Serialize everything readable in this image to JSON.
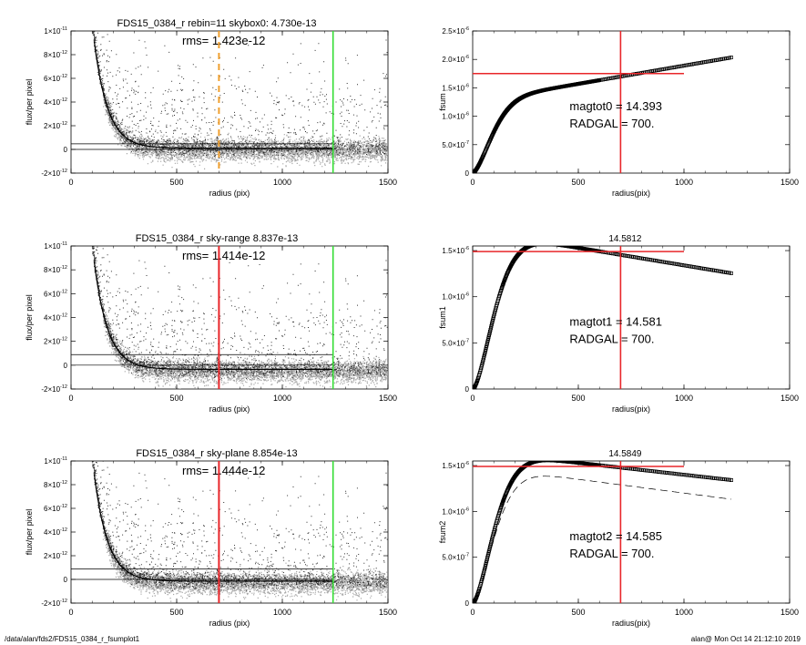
{
  "page": {
    "footer_left": "/data/alan/fds2/FDS15_0384_r_fsumplot1",
    "footer_right": "alan@  Mon Oct 14 21:12:10 2019"
  },
  "colors": {
    "red": "#e8262a",
    "green": "#33dd33",
    "orange": "#f0a030",
    "points_dark": "#303030",
    "points_light": "#a8a8a8"
  },
  "chart_data": [
    {
      "type": "scatter",
      "title": "FDS15_0384_r rebin=11    skybox0:  4.730e-13",
      "annotation": "rms= 1.423e-12",
      "xlabel": "radius (pix)",
      "ylabel": "flux/per pixel",
      "xlim": [
        0,
        1500
      ],
      "ylim": [
        -2e-12,
        1e-11
      ],
      "xticks": [
        "0",
        "500",
        "1000",
        "1500"
      ],
      "yticks": [
        {
          "v": 1e-11,
          "base": "1×10",
          "exp": "-11"
        },
        {
          "v": 8e-12,
          "base": "8×10",
          "exp": "-12"
        },
        {
          "v": 6e-12,
          "base": "6×10",
          "exp": "-12"
        },
        {
          "v": 4e-12,
          "base": "4×10",
          "exp": "-12"
        },
        {
          "v": 2e-12,
          "base": "2×10",
          "exp": "-12"
        },
        {
          "v": 0,
          "base": "0",
          "exp": ""
        },
        {
          "v": -2e-12,
          "base": "-2×10",
          "exp": "-12"
        }
      ],
      "hlines": [
        0,
        4.73e-13
      ],
      "profile_decay": 65,
      "noise": 1.3e-12,
      "tail": 1e-13,
      "marker_line": {
        "x": 700,
        "style": "dashed",
        "color": "orange"
      },
      "limit_line": {
        "x": 1240,
        "color": "green"
      }
    },
    {
      "type": "scatter",
      "title": "FDS15_0384_r sky-range  8.837e-13",
      "annotation": "rms= 1.414e-12",
      "xlabel": "radius (pix)",
      "ylabel": "flux/per pixel",
      "xlim": [
        0,
        1500
      ],
      "ylim": [
        -2e-12,
        1e-11
      ],
      "xticks": [
        "0",
        "500",
        "1000",
        "1500"
      ],
      "yticks": [
        {
          "v": 1e-11,
          "base": "1×10",
          "exp": "-11"
        },
        {
          "v": 8e-12,
          "base": "8×10",
          "exp": "-12"
        },
        {
          "v": 6e-12,
          "base": "6×10",
          "exp": "-12"
        },
        {
          "v": 4e-12,
          "base": "4×10",
          "exp": "-12"
        },
        {
          "v": 2e-12,
          "base": "2×10",
          "exp": "-12"
        },
        {
          "v": 0,
          "base": "0",
          "exp": ""
        },
        {
          "v": -2e-12,
          "base": "-2×10",
          "exp": "-12"
        }
      ],
      "hlines": [
        0,
        8.837e-13
      ],
      "profile_decay": 65,
      "noise": 1.3e-12,
      "tail": -3.5e-13,
      "marker_line": {
        "x": 700,
        "style": "solid",
        "color": "red"
      },
      "limit_line": {
        "x": 1240,
        "color": "green"
      }
    },
    {
      "type": "scatter",
      "title": "FDS15_0384_r sky-plane  8.854e-13",
      "annotation": "rms= 1.444e-12",
      "xlabel": "radius (pix)",
      "ylabel": "flux/per pixel",
      "xlim": [
        0,
        1500
      ],
      "ylim": [
        -2e-12,
        1e-11
      ],
      "xticks": [
        "0",
        "500",
        "1000",
        "1500"
      ],
      "yticks": [
        {
          "v": 1e-11,
          "base": "1×10",
          "exp": "-11"
        },
        {
          "v": 8e-12,
          "base": "8×10",
          "exp": "-12"
        },
        {
          "v": 6e-12,
          "base": "6×10",
          "exp": "-12"
        },
        {
          "v": 4e-12,
          "base": "4×10",
          "exp": "-12"
        },
        {
          "v": 2e-12,
          "base": "2×10",
          "exp": "-12"
        },
        {
          "v": 0,
          "base": "0",
          "exp": ""
        },
        {
          "v": -2e-12,
          "base": "-2×10",
          "exp": "-12"
        }
      ],
      "hlines": [
        0,
        8.854e-13
      ],
      "profile_decay": 65,
      "noise": 1.3e-12,
      "tail": -1.5e-13,
      "marker_line": {
        "x": 700,
        "style": "solid",
        "color": "red"
      },
      "limit_line": {
        "x": 1240,
        "color": "green"
      }
    },
    {
      "type": "line",
      "title": "",
      "xlabel": "radius(pix)",
      "ylabel": "fsum",
      "xlim": [
        0,
        1500
      ],
      "ylim": [
        0,
        2.5e-06
      ],
      "xticks": [
        "0",
        "500",
        "1000",
        "1500"
      ],
      "yticks": [
        {
          "v": 0,
          "base": "0",
          "exp": ""
        },
        {
          "v": 5e-07,
          "base": "5.0×10",
          "exp": "-7"
        },
        {
          "v": 1e-06,
          "base": "1.0×10",
          "exp": "-6"
        },
        {
          "v": 1.5e-06,
          "base": "1.5×10",
          "exp": "-6"
        },
        {
          "v": 2e-06,
          "base": "2.0×10",
          "exp": "-6"
        },
        {
          "v": 2.5e-06,
          "base": "2.5×10",
          "exp": "-6"
        }
      ],
      "curve": {
        "plateau": 1.25e-06,
        "decay": 120,
        "slope": 6.4e-10,
        "max_x": 1230
      },
      "dashed_curve": null,
      "hline": {
        "y": 1.75e-06,
        "x_end": 1000
      },
      "vline": {
        "x": 700
      },
      "magtot_label": "magtot0 =  14.393",
      "radgal_label": "RADGAL =    700.",
      "top_value": ""
    },
    {
      "type": "line",
      "title": "",
      "xlabel": "radius(pix)",
      "ylabel": "fsum1",
      "xlim": [
        0,
        1500
      ],
      "ylim": [
        0,
        1.55e-06
      ],
      "xticks": [
        "0",
        "500",
        "1000",
        "1500"
      ],
      "yticks": [
        {
          "v": 0,
          "base": "0",
          "exp": ""
        },
        {
          "v": 5e-07,
          "base": "5.0×10",
          "exp": "-7"
        },
        {
          "v": 1e-06,
          "base": "1.0×10",
          "exp": "-6"
        },
        {
          "v": 1.5e-06,
          "base": "1.5×10",
          "exp": "-6"
        }
      ],
      "curve": {
        "plateau": 1.72e-06,
        "decay": 130,
        "slope": -3.8e-10,
        "max_x": 1230
      },
      "dashed_curve": null,
      "hline": {
        "y": 1.49e-06,
        "x_end": 1000
      },
      "vline": {
        "x": 700
      },
      "magtot_label": "magtot1 =  14.581",
      "radgal_label": "RADGAL =    700.",
      "top_value": "14.5812"
    },
    {
      "type": "line",
      "title": "",
      "xlabel": "radius(pix)",
      "ylabel": "fsum2",
      "xlim": [
        0,
        1500
      ],
      "ylim": [
        0,
        1.55e-06
      ],
      "xticks": [
        "0",
        "500",
        "1000",
        "1500"
      ],
      "yticks": [
        {
          "v": 0,
          "base": "0",
          "exp": ""
        },
        {
          "v": 5e-07,
          "base": "5.0×10",
          "exp": "-7"
        },
        {
          "v": 1e-06,
          "base": "1.0×10",
          "exp": "-6"
        },
        {
          "v": 1.5e-06,
          "base": "1.5×10",
          "exp": "-6"
        }
      ],
      "curve": {
        "plateau": 1.66e-06,
        "decay": 130,
        "slope": -2.6e-10,
        "max_x": 1230
      },
      "dashed_curve": {
        "plateau": 1.5e-06,
        "decay": 130,
        "slope": -3e-10,
        "max_x": 1230
      },
      "hline": {
        "y": 1.49e-06,
        "x_end": 1000
      },
      "vline": {
        "x": 700
      },
      "magtot_label": "magtot2 =  14.585",
      "radgal_label": "RADGAL =    700.",
      "top_value": "14.5849"
    }
  ]
}
